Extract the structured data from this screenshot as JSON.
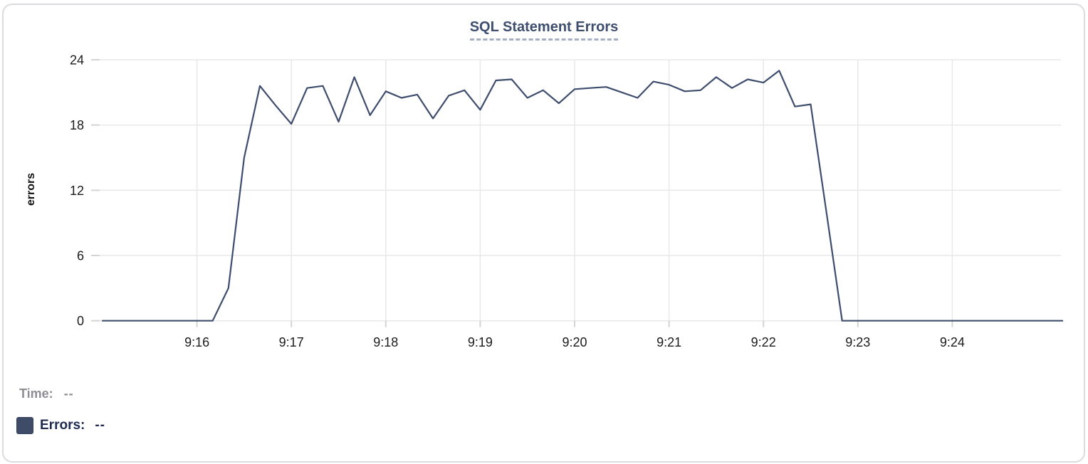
{
  "title": "SQL Statement Errors",
  "colors": {
    "line": "#3e4d6e",
    "title": "#3d4e6f",
    "title_underline": "#a6aec3",
    "swatch": "#3e4c68",
    "time_text": "#8d8d93",
    "errors_text": "#1f2a52",
    "grid": "#e8e8e8",
    "axis_tick": "#d4d4d4",
    "tick_label": "#1b1b1d",
    "frame_border": "#dadcdf",
    "background": "#ffffff"
  },
  "tooltip": {
    "time_label": "Time:",
    "time_value": "--",
    "errors_label": "Errors:",
    "errors_value": "--"
  },
  "chart_data": {
    "type": "line",
    "title": "SQL Statement Errors",
    "xlabel": "",
    "ylabel": "errors",
    "ylim": [
      0,
      24
    ],
    "y_ticks": [
      0,
      6,
      12,
      18,
      24
    ],
    "x_ticks": [
      "9:16",
      "9:17",
      "9:18",
      "9:19",
      "9:20",
      "9:21",
      "9:22",
      "9:23",
      "9:24"
    ],
    "grid": true,
    "legend_position": "bottom",
    "series": [
      {
        "name": "Errors",
        "x": [
          "9:15:00",
          "9:15:10",
          "9:15:20",
          "9:15:30",
          "9:15:40",
          "9:15:50",
          "9:16:00",
          "9:16:10",
          "9:16:20",
          "9:16:30",
          "9:16:40",
          "9:16:50",
          "9:17:00",
          "9:17:10",
          "9:17:20",
          "9:17:30",
          "9:17:40",
          "9:17:50",
          "9:18:00",
          "9:18:10",
          "9:18:20",
          "9:18:30",
          "9:18:40",
          "9:18:50",
          "9:19:00",
          "9:19:10",
          "9:19:20",
          "9:19:30",
          "9:19:40",
          "9:19:50",
          "9:20:00",
          "9:20:10",
          "9:20:20",
          "9:20:30",
          "9:20:40",
          "9:20:50",
          "9:21:00",
          "9:21:10",
          "9:21:20",
          "9:21:30",
          "9:21:40",
          "9:21:50",
          "9:22:00",
          "9:22:10",
          "9:22:20",
          "9:22:30",
          "9:22:40",
          "9:22:50",
          "9:23:00",
          "9:23:10",
          "9:23:20",
          "9:23:30",
          "9:23:40",
          "9:23:50",
          "9:24:00",
          "9:24:10",
          "9:24:20",
          "9:24:30",
          "9:24:40",
          "9:24:50",
          "9:25:00",
          "9:25:10"
        ],
        "values": [
          0,
          0,
          0,
          0,
          0,
          0,
          0,
          0,
          3,
          15,
          21.6,
          19.8,
          18.1,
          21.4,
          21.6,
          18.3,
          22.4,
          18.9,
          21.1,
          20.5,
          20.8,
          18.6,
          20.7,
          21.2,
          19.4,
          22.1,
          22.2,
          20.5,
          21.2,
          20.0,
          21.3,
          21.4,
          21.5,
          21.0,
          20.5,
          22.0,
          21.7,
          21.1,
          21.2,
          22.4,
          21.4,
          22.2,
          21.9,
          23.0,
          19.7,
          19.9,
          10.0,
          0,
          0,
          0,
          0,
          0,
          0,
          0,
          0,
          0,
          0,
          0,
          0,
          0,
          0,
          0
        ]
      }
    ]
  }
}
